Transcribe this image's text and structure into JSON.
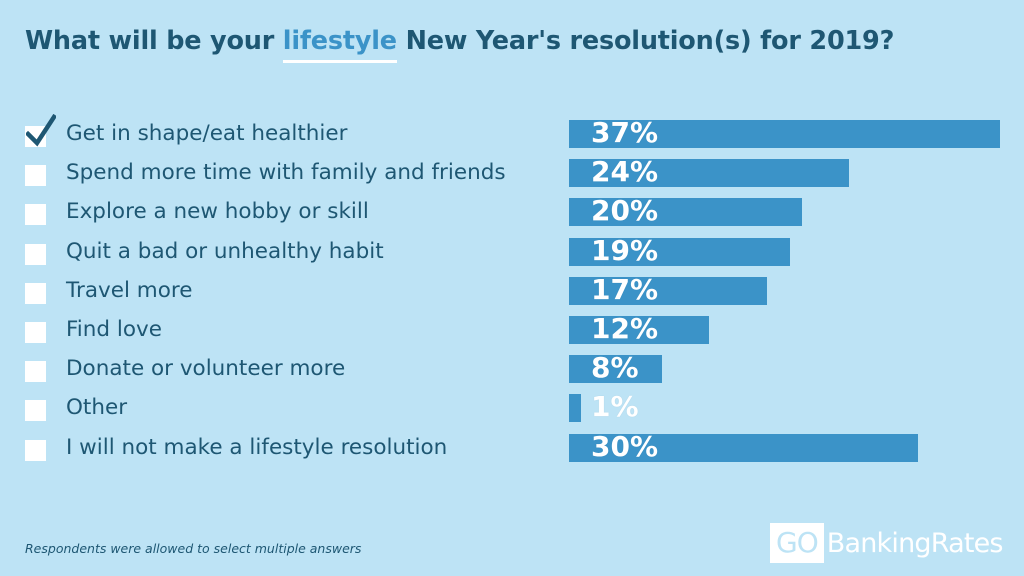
{
  "title": {
    "before": "What will be your ",
    "highlight": "lifestyle",
    "after": " New Year's resolution(s) for 2019?"
  },
  "chart_data": {
    "type": "bar",
    "orientation": "horizontal",
    "categories": [
      "Get in shape/eat healthier",
      "Spend more time with family and friends",
      "Explore a new hobby or skill",
      "Quit a bad or unhealthy habit",
      "Travel more",
      "Find love",
      "Donate or volunteer more",
      "Other",
      "I will not make a lifestyle resolution"
    ],
    "values": [
      37,
      24,
      20,
      19,
      17,
      12,
      8,
      1,
      30
    ],
    "value_labels": [
      "37%",
      "24%",
      "20%",
      "19%",
      "17%",
      "12%",
      "8%",
      "1%",
      "30%"
    ],
    "checked": [
      true,
      false,
      false,
      false,
      false,
      false,
      false,
      false,
      false
    ],
    "unit": "%",
    "xlim": [
      0,
      37
    ],
    "grid": false,
    "legend": "none",
    "colors": {
      "background": "#bde3f5",
      "bar": "#3b93c8",
      "text": "#1e5773",
      "checkbox": "#ffffff",
      "checkmark": "#1e5773"
    }
  },
  "footnote": "Respondents were allowed to select multiple answers",
  "logo": {
    "go": "GO",
    "rest": "BankingRates"
  }
}
